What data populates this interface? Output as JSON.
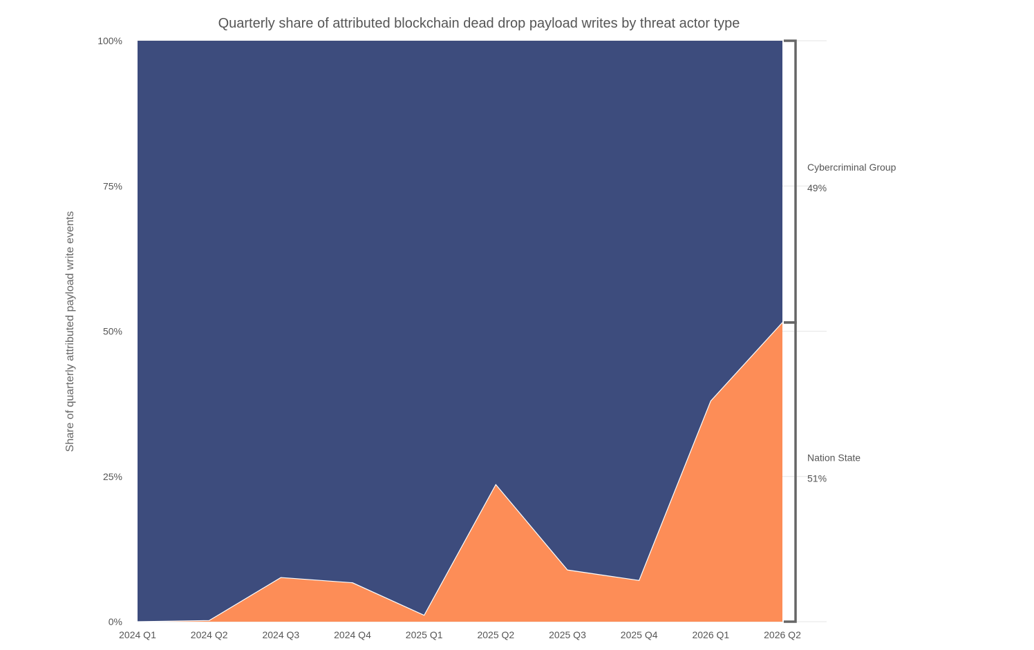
{
  "chart_data": {
    "type": "area",
    "stacked": true,
    "normalized": true,
    "title": "Quarterly share of attributed blockchain dead drop payload writes by threat actor type",
    "ylabel": "Share of quarterly attributed payload write events",
    "xlabel": "",
    "ylim": [
      0,
      100
    ],
    "y_ticks": [
      "0%",
      "25%",
      "50%",
      "75%",
      "100%"
    ],
    "y_tick_values": [
      0,
      25,
      50,
      75,
      100
    ],
    "categories": [
      "2024 Q1",
      "2024 Q2",
      "2024 Q3",
      "2024 Q4",
      "2025 Q1",
      "2025 Q2",
      "2025 Q3",
      "2025 Q4",
      "2026 Q1",
      "2026 Q2"
    ],
    "series": [
      {
        "name": "Nation State",
        "color": "#fd8c55",
        "values": [
          0,
          0.2,
          7.6,
          6.7,
          1.1,
          23.6,
          8.9,
          7.1,
          38.0,
          51.5
        ]
      },
      {
        "name": "Cybercriminal Group",
        "color": "#3b4a7b",
        "values": [
          100,
          99.8,
          92.4,
          93.3,
          98.9,
          76.4,
          91.1,
          92.9,
          62.0,
          48.5
        ]
      }
    ],
    "annotations": [
      {
        "series": "Cybercriminal Group",
        "label": "Cybercriminal Group",
        "value": "49%"
      },
      {
        "series": "Nation State",
        "label": "Nation State",
        "value": "51%"
      }
    ],
    "grid": true,
    "legend": "right-side annotations"
  }
}
